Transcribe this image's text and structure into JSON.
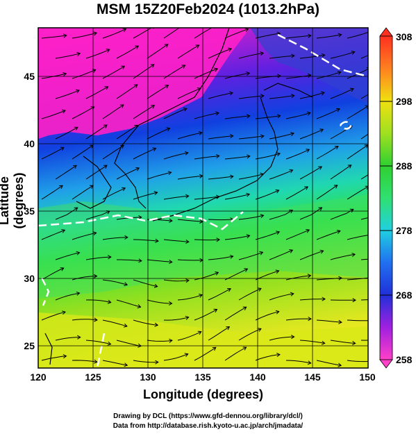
{
  "title": "MSM 15Z20Feb2024 (1013.2hPa)",
  "axes": {
    "xlabel": "Longitude (degrees)",
    "ylabel": "Latitude  (degrees)",
    "xlim": [
      120,
      150
    ],
    "ylim": [
      22.4,
      47.6
    ],
    "xticks": [
      "120",
      "125",
      "130",
      "135",
      "140",
      "145",
      "150"
    ],
    "yticks": [
      "25",
      "30",
      "35",
      "40",
      "45"
    ]
  },
  "colorbar": {
    "ticks": [
      "308",
      "298",
      "288",
      "278",
      "268",
      "258"
    ],
    "min": 258,
    "max": 308,
    "colors": [
      "#ff40c8",
      "#a020e0",
      "#2030d8",
      "#2070f0",
      "#20d0e0",
      "#30e070",
      "#30d030",
      "#a0e020",
      "#f0e010",
      "#ff8020",
      "#ff3020"
    ]
  },
  "credits": {
    "line1": "Drawing by DCL (https://www.gfd-dennou.org/library/dcl/)",
    "line2": "Data from http://database.rish.kyoto-u.ac.jp/arch/jmadata/"
  }
}
